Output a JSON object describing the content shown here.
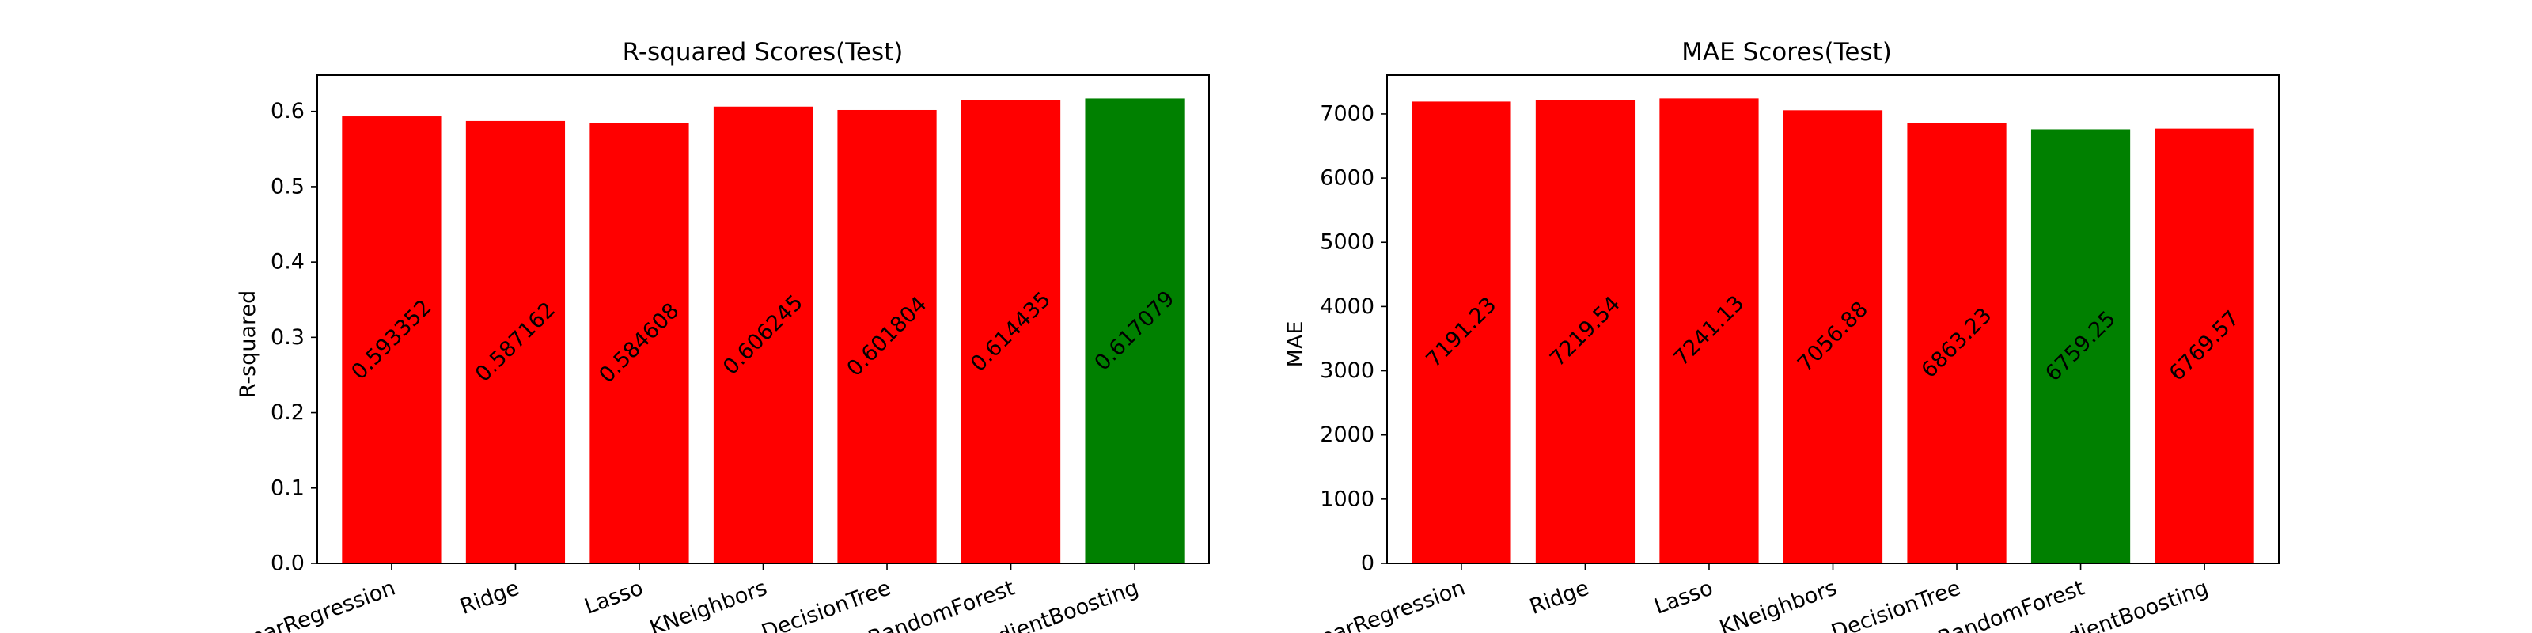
{
  "chart_data": [
    {
      "type": "bar",
      "title": "R-squared Scores(Test)",
      "xlabel": "",
      "ylabel": "R-squared",
      "categories": [
        "LinearRegression",
        "Ridge",
        "Lasso",
        "KNeighbors",
        "DecisionTree",
        "RandomForest",
        "GradientBoosting"
      ],
      "values": [
        0.593352,
        0.587162,
        0.584608,
        0.606245,
        0.601804,
        0.614435,
        0.617079
      ],
      "value_labels": [
        "0.593352",
        "0.587162",
        "0.584608",
        "0.606245",
        "0.601804",
        "0.614435",
        "0.617079"
      ],
      "ylim": [
        0,
        0.648
      ],
      "yticks": [
        0.0,
        0.1,
        0.2,
        0.3,
        0.4,
        0.5,
        0.6
      ],
      "ytick_labels": [
        "0.0",
        "0.1",
        "0.2",
        "0.3",
        "0.4",
        "0.5",
        "0.6"
      ],
      "grid": false,
      "bar_color": "#ff0000",
      "best_color": "#008000",
      "best_index": 6
    },
    {
      "type": "bar",
      "title": "MAE Scores(Test)",
      "xlabel": "",
      "ylabel": "MAE",
      "categories": [
        "LinearRegression",
        "Ridge",
        "Lasso",
        "KNeighbors",
        "DecisionTree",
        "RandomForest",
        "GradientBoosting"
      ],
      "values": [
        7191.23,
        7219.54,
        7241.13,
        7056.88,
        6863.23,
        6759.25,
        6769.57
      ],
      "value_labels": [
        "7191.23",
        "7219.54",
        "7241.13",
        "7056.88",
        "6863.23",
        "6759.25",
        "6769.57"
      ],
      "ylim": [
        0,
        7603
      ],
      "yticks": [
        0,
        1000,
        2000,
        3000,
        4000,
        5000,
        6000,
        7000
      ],
      "ytick_labels": [
        "0",
        "1000",
        "2000",
        "3000",
        "4000",
        "5000",
        "6000",
        "7000"
      ],
      "grid": false,
      "bar_color": "#ff0000",
      "best_color": "#008000",
      "best_index": 5
    }
  ]
}
